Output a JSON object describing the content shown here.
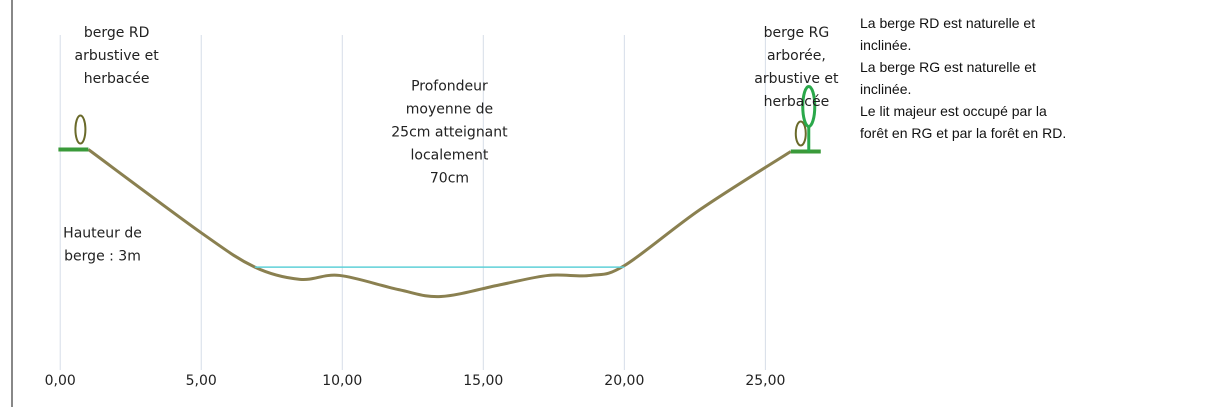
{
  "chart_data": {
    "type": "line",
    "xlim": [
      -1,
      28
    ],
    "ylim": [
      -1.5,
      5.5
    ],
    "xticks": [
      {
        "value": 0,
        "label": "0,00"
      },
      {
        "value": 5,
        "label": "5,00"
      },
      {
        "value": 10,
        "label": "10,00"
      },
      {
        "value": 15,
        "label": "15,00"
      },
      {
        "value": 20,
        "label": "20,00"
      },
      {
        "value": 25,
        "label": "25,00"
      }
    ],
    "grid": true,
    "series": [
      {
        "color": "#8a8050",
        "x": [
          1.0,
          5.0,
          6.9,
          8.5,
          9.9,
          12.0,
          13.5,
          15.6,
          17.3,
          18.8,
          20.0,
          22.7,
          25.9
        ],
        "values": [
          3.0,
          1.3,
          0.6,
          0.35,
          0.43,
          0.14,
          0.0,
          0.24,
          0.43,
          0.43,
          0.63,
          1.78,
          2.96
        ]
      },
      {
        "color": "#5fd0d8",
        "x": [
          6.9,
          20.0
        ],
        "values": [
          0.6,
          0.6
        ]
      }
    ],
    "annotations": [
      {
        "x": 2.0,
        "y": 5.3,
        "lines": [
          "berge RD",
          "arbustive et",
          "herbacée"
        ]
      },
      {
        "x": 26.1,
        "y": 5.3,
        "lines": [
          "berge RG",
          "arborée,",
          "arbustive et",
          "herbacée"
        ]
      },
      {
        "x": 13.8,
        "y": 4.2,
        "lines": [
          "Profondeur",
          "moyenne de",
          "25cm  atteignant",
          "localement",
          "70cm"
        ]
      },
      {
        "x": 1.5,
        "y": 1.2,
        "lines": [
          "Hauteur de",
          "berge : 3m"
        ]
      }
    ]
  },
  "side_text": [
    "La berge RD est naturelle et",
    "inclinée.",
    "La berge RG est naturelle et",
    "inclinée.",
    "Le lit majeur est occupé par la",
    "forêt en RG et par la forêt en RD."
  ]
}
